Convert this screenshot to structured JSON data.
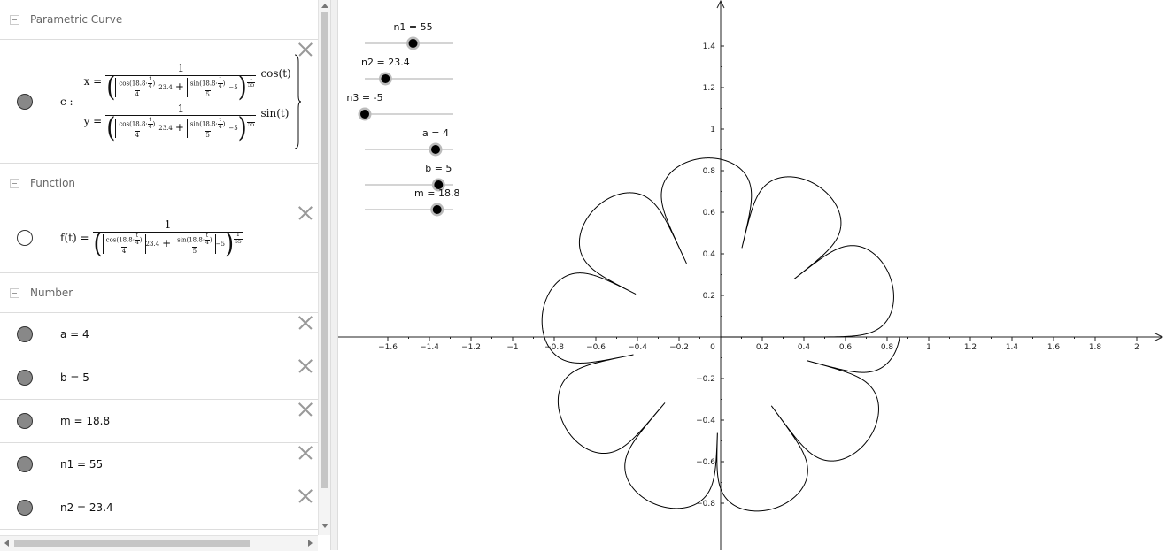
{
  "algebra": {
    "categories": {
      "parametric": "Parametric Curve",
      "function": "Function",
      "number": "Number"
    },
    "curve": {
      "name": "c :",
      "x_lhs": "x =",
      "y_lhs": "y =",
      "one": "1",
      "cos_num": "cos(18.8·",
      "t_frac": "t",
      "four": "4",
      "paren_close": ")",
      "sin_num": "sin(18.8·",
      "a_den": "4",
      "b_den": "5",
      "n2": "23.4",
      "n3": "−5",
      "plus": "+",
      "exp_num": "1",
      "exp_den": "55",
      "x_trig": "cos(t)",
      "y_trig": "sin(t)"
    },
    "func": {
      "lhs": "f(t) ="
    },
    "numbers": [
      {
        "label": "a = 4"
      },
      {
        "label": "b = 5"
      },
      {
        "label": "m = 18.8"
      },
      {
        "label": "n1 = 55"
      },
      {
        "label": "n2 = 23.4"
      }
    ]
  },
  "sliders": [
    {
      "label": "n1 = 55",
      "value": 55,
      "min": 1,
      "max": 100
    },
    {
      "label": "n2 = 23.4",
      "value": 23.4,
      "min": 0,
      "max": 100
    },
    {
      "label": "n3 = -5",
      "value": -5,
      "min": -5,
      "max": 20
    },
    {
      "label": "a = 4",
      "value": 4,
      "min": 0,
      "max": 5
    },
    {
      "label": "b = 5",
      "value": 5,
      "min": 0,
      "max": 6
    },
    {
      "label": "m = 18.8",
      "value": 18.8,
      "min": 0,
      "max": 23
    }
  ],
  "graph": {
    "x_ticks": [
      "−1.6",
      "−1.4",
      "−1.2",
      "−1",
      "−0.8",
      "−0.6",
      "−0.4",
      "−0.2",
      "0",
      "0.2",
      "0.4",
      "0.6",
      "0.8",
      "1",
      "1.2",
      "1.4",
      "1.6",
      "1.8",
      "2"
    ],
    "y_ticks_pos": [
      "0.2",
      "0.4",
      "0.6",
      "0.8",
      "1",
      "1.2",
      "1.4"
    ],
    "y_ticks_neg": [
      "−0.2",
      "−0.4",
      "−0.6",
      "−0.8"
    ],
    "curve": {
      "a": 4,
      "b": 5,
      "m": 18.8,
      "n1": 55,
      "n2": 23.4,
      "n3": -5,
      "t_max": 6.2832
    },
    "color": "#000000"
  }
}
